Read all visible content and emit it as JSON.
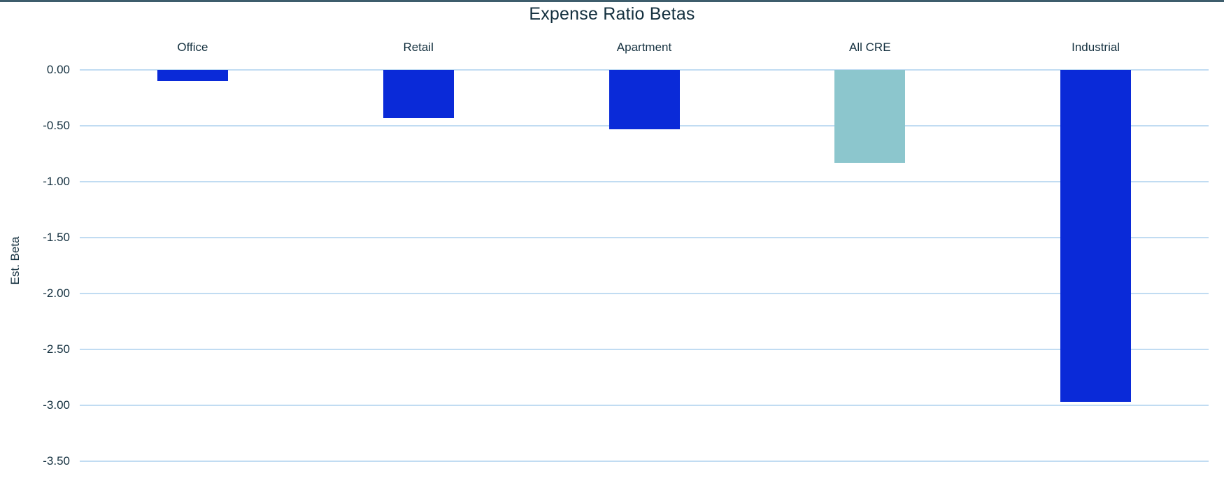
{
  "chart_data": {
    "type": "bar",
    "title": "Expense Ratio Betas",
    "ylabel": "Est. Beta",
    "categories": [
      "Office",
      "Retail",
      "Apartment",
      "All CRE",
      "Industrial"
    ],
    "values": [
      -0.1,
      -0.43,
      -0.53,
      -0.83,
      -2.97
    ],
    "bar_colors": [
      "#0a2ad8",
      "#0a2ad8",
      "#0a2ad8",
      "#8cc6cd",
      "#0a2ad8"
    ],
    "yticks": [
      0.0,
      -0.5,
      -1.0,
      -1.5,
      -2.0,
      -2.5,
      -3.0,
      -3.5
    ],
    "ytick_labels": [
      "0.00",
      "-0.50",
      "-1.00",
      "-1.50",
      "-2.00",
      "-2.50",
      "-3.00",
      "-3.50"
    ],
    "ylim": [
      -3.5,
      0.0
    ],
    "grid": true,
    "legend": "none",
    "colors": {
      "gridline": "#c1dcf2",
      "text": "#14303f",
      "top_border": "#3e5d6c",
      "background": "#ffffff"
    }
  }
}
